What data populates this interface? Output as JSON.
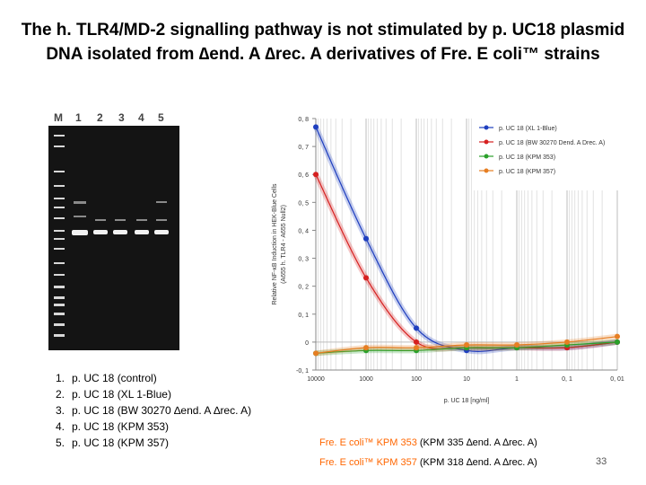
{
  "title": {
    "line1": "The h. TLR4/MD-2 signalling pathway is not stimulated by p. UC18 plasmid",
    "line2": "DNA isolated from ∆end. A ∆rec. A derivatives of Fre. E coli™ strains"
  },
  "gel": {
    "lane_labels": [
      "M",
      "1",
      "2",
      "3",
      "4",
      "5"
    ]
  },
  "lanes_legend": [
    {
      "num": "1.",
      "text": "p. UC 18 (control)"
    },
    {
      "num": "2.",
      "text": "p. UC 18 (XL 1-Blue)"
    },
    {
      "num": "3.",
      "text": "p. UC 18 (BW 30270 ∆end. A ∆rec. A)"
    },
    {
      "num": "4.",
      "text": "p. UC 18 (KPM 353)"
    },
    {
      "num": "5.",
      "text": "p. UC 18 (KPM 357)"
    }
  ],
  "chart_data": {
    "type": "line",
    "xlabel": "p. UC 18 [ng/ml]",
    "ylabel": "Relative NF-κB Induction in HEK-Blue Cells",
    "ylabel2": "(A655 h. TLR4 - A655 Null2)",
    "x_ticks": [
      "10000",
      "1000",
      "100",
      "10",
      "1",
      "0, 1",
      "0, 01"
    ],
    "y_ticks": [
      "-0, 1",
      "0",
      "0, 1",
      "0, 2",
      "0, 3",
      "0, 4",
      "0, 5",
      "0, 6",
      "0, 7",
      "0, 8"
    ],
    "x_scale": "log-reversed",
    "xlim": [
      10000,
      0.01
    ],
    "ylim": [
      -0.1,
      0.8
    ],
    "grid": true,
    "legend_position": "top-right",
    "x": [
      10000,
      1000,
      100,
      10,
      1,
      0.1,
      0.01
    ],
    "series": [
      {
        "name": "p. UC 18 (XL 1-Blue)",
        "color": "#1f3fbf",
        "values": [
          0.77,
          0.37,
          0.05,
          -0.03,
          -0.02,
          -0.02,
          0.0
        ]
      },
      {
        "name": "p. UC 18 (BW 30270 Dend. A Drec. A)",
        "color": "#d62020",
        "values": [
          0.6,
          0.23,
          0.0,
          -0.02,
          -0.02,
          -0.02,
          0.0
        ]
      },
      {
        "name": "p. UC 18 (KPM 353)",
        "color": "#2aa02a",
        "values": [
          -0.04,
          -0.03,
          -0.03,
          -0.02,
          -0.02,
          -0.01,
          0.0
        ]
      },
      {
        "name": "p. UC 18 (KPM 357)",
        "color": "#e67e22",
        "values": [
          -0.04,
          -0.02,
          -0.02,
          -0.01,
          -0.01,
          0.0,
          0.02
        ]
      }
    ]
  },
  "footnotes": [
    {
      "brand": "Fre. E coli™ KPM 353",
      "rest": " (KPM 335 ∆end. A ∆rec. A)"
    },
    {
      "brand": "Fre. E coli™ KPM 357",
      "rest": " (KPM 318 ∆end. A ∆rec. A)"
    }
  ],
  "page_number": "33"
}
